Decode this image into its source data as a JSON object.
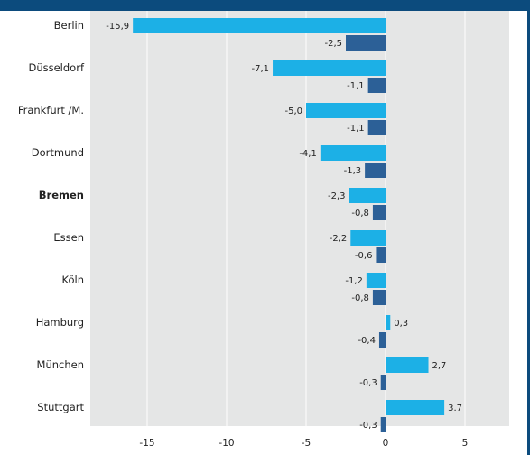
{
  "colors": {
    "accent": "#0c4b7d",
    "plot_bg": "#e5e6e6",
    "series_1": "#1cb0e6",
    "series_2": "#2c6097",
    "grid": "#ffffff"
  },
  "chart_data": {
    "type": "bar",
    "orientation": "horizontal",
    "categories": [
      "Berlin",
      "Düsseldorf",
      "Frankfurt /M.",
      "Dortmund",
      "Bremen",
      "Essen",
      "Köln",
      "Hamburg",
      "München",
      "Stuttgart"
    ],
    "highlighted_category": "Bremen",
    "series": [
      {
        "values": [
          -15.9,
          -7.1,
          -5.0,
          -4.1,
          -2.3,
          -2.2,
          -1.2,
          0.3,
          2.7,
          3.7
        ],
        "value_labels": [
          "-15,9",
          "-7,1",
          "-5,0",
          "-4,1",
          "-2,3",
          "-2,2",
          "-1,2",
          "0,3",
          "2,7",
          "3.7"
        ]
      },
      {
        "values": [
          -2.5,
          -1.1,
          -1.1,
          -1.3,
          -0.8,
          -0.6,
          -0.8,
          -0.4,
          -0.3,
          -0.3
        ],
        "value_labels": [
          "-2,5",
          "-1,1",
          "-1,1",
          "-1,3",
          "-0,8",
          "-0,6",
          "-0,8",
          "-0,4",
          "-0,3",
          "-0,3"
        ]
      }
    ],
    "xlim": [
      -18.2,
      7.8
    ],
    "xticks": [
      -15,
      -10,
      -5,
      0,
      5
    ],
    "xtick_labels": [
      "-15",
      "-10",
      "-5",
      "0",
      "5"
    ],
    "grid": "vertical",
    "title": "",
    "xlabel": "",
    "ylabel": ""
  }
}
